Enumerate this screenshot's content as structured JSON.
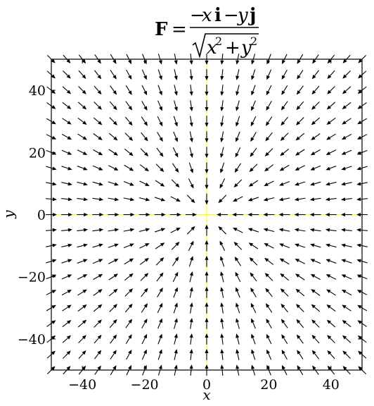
{
  "chart_data": {
    "type": "quiver",
    "title": {
      "lhs": "F",
      "equals": "=",
      "numerator": {
        "minus": "−",
        "x": "x",
        "i": "i",
        "op": "−",
        "y": "y",
        "j": "j"
      },
      "denominator": {
        "x": "x",
        "y": "y",
        "exp": "2",
        "plus": "+"
      }
    },
    "xlabel": "x",
    "ylabel": "y",
    "xlim": [
      -50,
      50
    ],
    "ylim": [
      -50,
      50
    ],
    "xticks": [
      -40,
      -20,
      0,
      20,
      40
    ],
    "yticks": [
      -40,
      -20,
      0,
      20,
      40
    ],
    "xtick_labels": [
      "−40",
      "−20",
      "0",
      "20",
      "40"
    ],
    "ytick_labels": [
      "−40",
      "−20",
      "0",
      "20",
      "40"
    ],
    "grid": [
      -50,
      -45,
      -40,
      -35,
      -30,
      -25,
      -20,
      -15,
      -10,
      -5,
      0,
      5,
      10,
      15,
      20,
      25,
      30,
      35,
      40,
      45,
      50
    ],
    "field": {
      "fx": "-x/sqrt(x^2+y^2)",
      "fy": "-y/sqrt(x^2+y^2)",
      "arrow_length_units": 3.6
    },
    "reference_lines": {
      "x": 0,
      "y": 0,
      "color": "#ffff00"
    },
    "arrow_color": "#000000"
  }
}
